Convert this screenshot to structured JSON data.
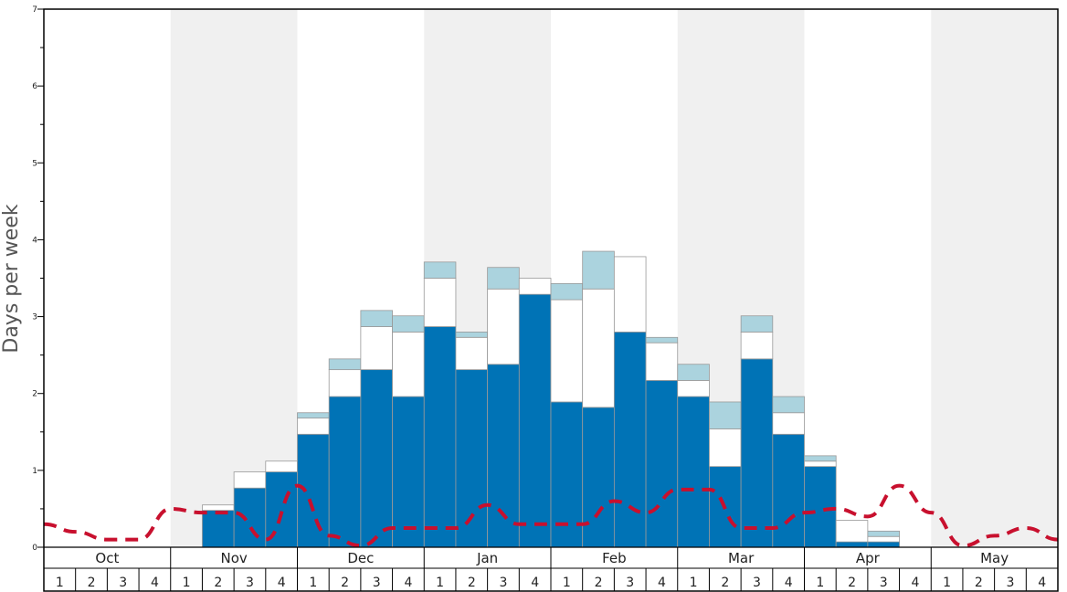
{
  "chart_data": {
    "type": "bar",
    "stacked": true,
    "title": "",
    "xlabel": "",
    "ylabel": "Days per week",
    "ylim": [
      0,
      7
    ],
    "yticks": [
      0,
      1,
      2,
      3,
      4,
      5,
      6,
      7
    ],
    "grid": false,
    "legend": "none",
    "months": [
      "Oct",
      "Nov",
      "Dec",
      "Jan",
      "Feb",
      "Mar",
      "Apr",
      "May"
    ],
    "week_labels": [
      "1",
      "2",
      "3",
      "4"
    ],
    "shaded_months": [
      "Nov",
      "Jan",
      "Mar",
      "May"
    ],
    "colors": {
      "bottom": "#0073b6",
      "middle": "#ffffff",
      "top": "#abd3de",
      "line": "#c8102e",
      "shade": "#f0f0f0",
      "bar_border": "#999999"
    },
    "series": [
      {
        "values": [
          0,
          0,
          0,
          0,
          0,
          0.48,
          0.77,
          0.98,
          1.47,
          1.96,
          2.31,
          1.96,
          2.87,
          2.31,
          2.38,
          3.29,
          1.89,
          1.82,
          2.8,
          2.17,
          1.96,
          1.05,
          2.45,
          1.47,
          1.05,
          0.07,
          0.07,
          0,
          0,
          0,
          0,
          0
        ]
      },
      {
        "values": [
          0,
          0,
          0,
          0,
          0,
          0.07,
          0.21,
          0.14,
          0.21,
          0.35,
          0.56,
          0.84,
          0.63,
          0.42,
          0.98,
          0.21,
          1.33,
          1.54,
          0.98,
          0.49,
          0.21,
          0.49,
          0.35,
          0.28,
          0.07,
          0.28,
          0.07,
          0,
          0,
          0,
          0,
          0
        ]
      },
      {
        "values": [
          0,
          0,
          0,
          0,
          0,
          0,
          0,
          0,
          0.07,
          0.14,
          0.21,
          0.21,
          0.21,
          0.07,
          0.28,
          0,
          0.21,
          0.49,
          0,
          0.07,
          0.21,
          0.35,
          0.21,
          0.21,
          0.07,
          0,
          0.07,
          0,
          0,
          0,
          0,
          0
        ]
      }
    ],
    "line_series": {
      "style": "dashed",
      "values": [
        0.3,
        0.2,
        0.1,
        0.1,
        0.5,
        0.45,
        0.45,
        0.1,
        0.8,
        0.15,
        0.02,
        0.25,
        0.25,
        0.25,
        0.55,
        0.3,
        0.3,
        0.3,
        0.6,
        0.45,
        0.75,
        0.75,
        0.25,
        0.25,
        0.45,
        0.5,
        0.4,
        0.8,
        0.45,
        0.02,
        0.15,
        0.25,
        0.1
      ]
    }
  }
}
